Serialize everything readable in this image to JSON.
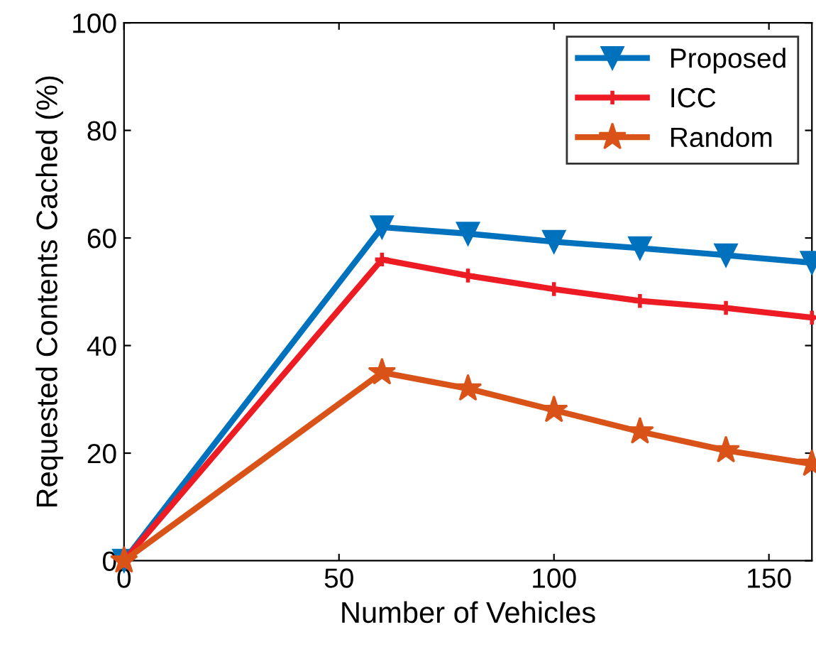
{
  "chart_data": {
    "type": "line",
    "xlabel": "Number of Vehicles",
    "ylabel": "Requested Contents Cached (%)",
    "xlim": [
      0,
      160
    ],
    "xticks": [
      0,
      50,
      100,
      150
    ],
    "ylim": [
      0,
      100
    ],
    "yticks": [
      0,
      20,
      40,
      60,
      80,
      100
    ],
    "x": [
      0,
      60,
      80,
      100,
      120,
      140,
      160
    ],
    "series": [
      {
        "name": "Proposed",
        "color": "#0072bd",
        "marker": "triangle",
        "values": [
          0,
          62,
          60.8,
          59.3,
          58.1,
          56.8,
          55.4
        ]
      },
      {
        "name": "ICC",
        "color": "#ed1c24",
        "marker": "cross",
        "values": [
          0,
          56,
          53,
          50.5,
          48.3,
          47,
          45.2
        ]
      },
      {
        "name": "Random",
        "color": "#d95319",
        "marker": "star",
        "values": [
          0,
          35,
          32,
          28,
          24,
          20.5,
          18
        ]
      }
    ],
    "legend": "top right",
    "grid": false,
    "line_style": "solid"
  }
}
